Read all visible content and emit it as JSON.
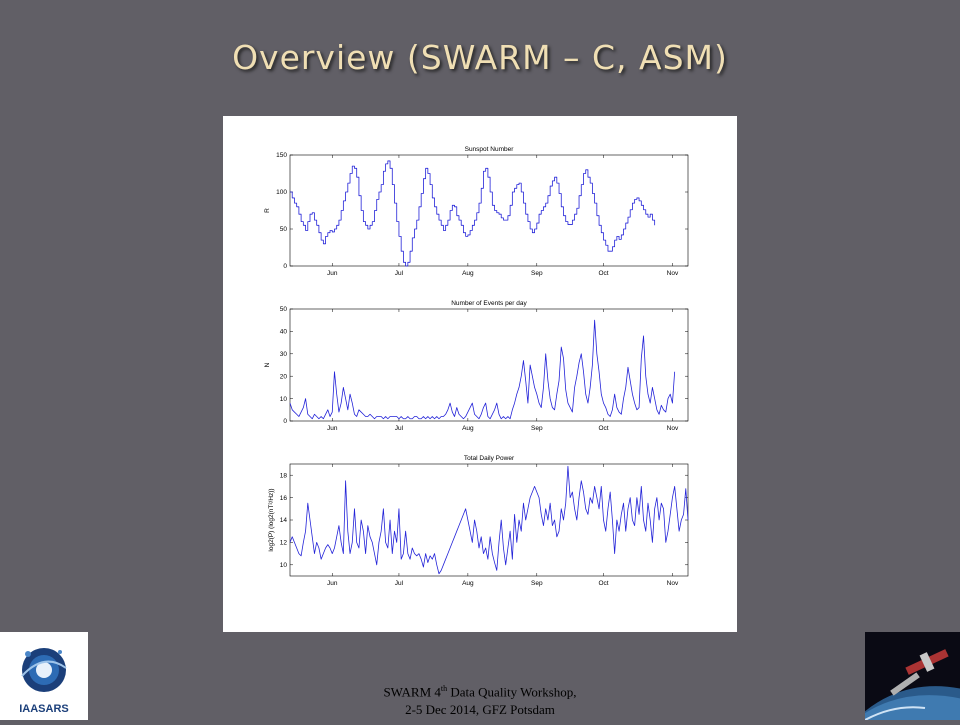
{
  "slide": {
    "title": "Overview (SWARM – C, ASM)",
    "footer_line1_pre": "SWARM 4",
    "footer_line1_sup": "th",
    "footer_line1_post": " Data Quality Workshop,",
    "footer_line2": "2-5 Dec 2014, GFZ Potsdam",
    "logo_text": "IAASARS"
  },
  "chart_data": [
    {
      "type": "line",
      "title": "Sunspot Number",
      "ylabel": "R",
      "xlabel": "",
      "ylim": [
        0,
        150
      ],
      "yticks": [
        0,
        50,
        100,
        150
      ],
      "xlim": [
        0,
        179
      ],
      "xticks": [
        {
          "label": "Jun",
          "x": 19
        },
        {
          "label": "Jul",
          "x": 49
        },
        {
          "label": "Aug",
          "x": 80
        },
        {
          "label": "Sep",
          "x": 111
        },
        {
          "label": "Oct",
          "x": 141
        },
        {
          "label": "Nov",
          "x": 172
        }
      ],
      "color": "#2323d8",
      "step": true,
      "series": [
        {
          "values": [
            100,
            92,
            85,
            80,
            70,
            60,
            55,
            48,
            60,
            70,
            72,
            62,
            55,
            45,
            35,
            30,
            40,
            45,
            48,
            46,
            50,
            55,
            62,
            75,
            88,
            100,
            112,
            125,
            135,
            132,
            120,
            95,
            75,
            60,
            55,
            50,
            55,
            60,
            75,
            90,
            100,
            110,
            128,
            138,
            142,
            132,
            110,
            85,
            60,
            40,
            20,
            5,
            0,
            5,
            20,
            38,
            50,
            62,
            80,
            98,
            118,
            132,
            125,
            110,
            92,
            80,
            70,
            62,
            55,
            48,
            55,
            62,
            75,
            82,
            80,
            68,
            62,
            55,
            45,
            40,
            42,
            48,
            55,
            62,
            72,
            85,
            105,
            128,
            132,
            120,
            100,
            82,
            75,
            72,
            70,
            65,
            62,
            62,
            68,
            82,
            100,
            105,
            110,
            112,
            100,
            85,
            70,
            60,
            50,
            45,
            50,
            58,
            70,
            75,
            80,
            85,
            95,
            108,
            115,
            120,
            112,
            98,
            80,
            68,
            60,
            56,
            56,
            62,
            70,
            78,
            95,
            110,
            125,
            130,
            120,
            112,
            98,
            85,
            68,
            55,
            45,
            35,
            28,
            20,
            20,
            26,
            35,
            40,
            36,
            42,
            50,
            58,
            66,
            76,
            85,
            90,
            92,
            88,
            82,
            76,
            70,
            66,
            70,
            62,
            55
          ]
        }
      ]
    },
    {
      "type": "line",
      "title": "Number of Events per day",
      "ylabel": "N",
      "xlabel": "",
      "ylim": [
        0,
        50
      ],
      "yticks": [
        0,
        10,
        20,
        30,
        40,
        50
      ],
      "xlim": [
        0,
        179
      ],
      "xticks": [
        {
          "label": "Jun",
          "x": 19
        },
        {
          "label": "Jul",
          "x": 49
        },
        {
          "label": "Aug",
          "x": 80
        },
        {
          "label": "Sep",
          "x": 111
        },
        {
          "label": "Oct",
          "x": 141
        },
        {
          "label": "Nov",
          "x": 172
        }
      ],
      "color": "#2323d8",
      "step": false,
      "series": [
        {
          "values": [
            8,
            5,
            4,
            3,
            2,
            4,
            6,
            10,
            3,
            2,
            1,
            3,
            2,
            1,
            2,
            1,
            3,
            5,
            2,
            4,
            22,
            12,
            4,
            8,
            15,
            10,
            5,
            12,
            8,
            3,
            2,
            5,
            4,
            3,
            2,
            2,
            3,
            2,
            1,
            2,
            2,
            2,
            1,
            2,
            1,
            2,
            2,
            2,
            2,
            1,
            2,
            1,
            1,
            2,
            1,
            1,
            2,
            2,
            1,
            1,
            2,
            1,
            2,
            1,
            2,
            1,
            2,
            1,
            2,
            2,
            3,
            5,
            8,
            4,
            2,
            6,
            3,
            2,
            1,
            2,
            4,
            6,
            8,
            3,
            2,
            1,
            3,
            6,
            8,
            2,
            1,
            3,
            5,
            8,
            3,
            1,
            2,
            1,
            2,
            1,
            5,
            8,
            12,
            15,
            20,
            27,
            18,
            8,
            25,
            20,
            15,
            12,
            8,
            6,
            15,
            30,
            18,
            10,
            6,
            5,
            12,
            18,
            33,
            28,
            14,
            8,
            6,
            4,
            15,
            20,
            26,
            30,
            22,
            12,
            8,
            15,
            25,
            45,
            30,
            22,
            12,
            8,
            6,
            3,
            2,
            5,
            12,
            6,
            4,
            3,
            10,
            15,
            24,
            18,
            12,
            8,
            5,
            6,
            28,
            38,
            20,
            12,
            8,
            15,
            10,
            5,
            3,
            7,
            5,
            4,
            10,
            12,
            8,
            22
          ]
        }
      ]
    },
    {
      "type": "line",
      "title": "Total Daily Power",
      "ylabel": "log2(P) (log2(nT²/Hz))",
      "xlabel": "",
      "ylim": [
        9,
        19
      ],
      "yticks": [
        10,
        12,
        14,
        16,
        18
      ],
      "xlim": [
        0,
        179
      ],
      "xticks": [
        {
          "label": "Jun",
          "x": 19
        },
        {
          "label": "Jul",
          "x": 49
        },
        {
          "label": "Aug",
          "x": 80
        },
        {
          "label": "Sep",
          "x": 111
        },
        {
          "label": "Oct",
          "x": 141
        },
        {
          "label": "Nov",
          "x": 172
        }
      ],
      "color": "#2323d8",
      "step": false,
      "series": [
        {
          "values": [
            12,
            12.5,
            12,
            11.5,
            11,
            10.8,
            12,
            13,
            15.5,
            14,
            12.5,
            11,
            12,
            11.5,
            10.5,
            11,
            11.5,
            11.8,
            11.5,
            11,
            11.5,
            12.5,
            13.5,
            12,
            11,
            17.5,
            13,
            11,
            12,
            15,
            12,
            11.5,
            14,
            13,
            11,
            13.5,
            12.5,
            12,
            11,
            10,
            12,
            13,
            15,
            12,
            11.5,
            14,
            11,
            13,
            12,
            15,
            10.5,
            11,
            13,
            11,
            10.5,
            11.5,
            11,
            10.8,
            11,
            10.5,
            9.8,
            11,
            10.2,
            10.8,
            10.5,
            11,
            10,
            9.2,
            9.5,
            10,
            10.5,
            11,
            11.5,
            12,
            12.5,
            13,
            13.5,
            14,
            14.5,
            15,
            14,
            13,
            12,
            14,
            13,
            11.5,
            12.5,
            11,
            11.5,
            10.5,
            12.5,
            11,
            10.2,
            9.5,
            12,
            14,
            11.5,
            10,
            11.5,
            13,
            10.5,
            14.5,
            12,
            14,
            13,
            15.5,
            14,
            15,
            16,
            16.5,
            17,
            16.5,
            16,
            14.5,
            13.5,
            15,
            14,
            15.5,
            13.5,
            14,
            12.5,
            13,
            15,
            14,
            15.5,
            18.8,
            16,
            16.5,
            15,
            14,
            16,
            17.5,
            16.5,
            15,
            14.5,
            16,
            15.5,
            17,
            16,
            15,
            17,
            14,
            13,
            15,
            16.5,
            14,
            11,
            14,
            13,
            14.5,
            15.5,
            13,
            15,
            16,
            14,
            13.5,
            16,
            14.5,
            17,
            14,
            13,
            15.5,
            14,
            12,
            15,
            16,
            14,
            15.5,
            15,
            12,
            13,
            14.5,
            16,
            17,
            15,
            13,
            14,
            14.5,
            16.8,
            14
          ]
        }
      ]
    }
  ]
}
